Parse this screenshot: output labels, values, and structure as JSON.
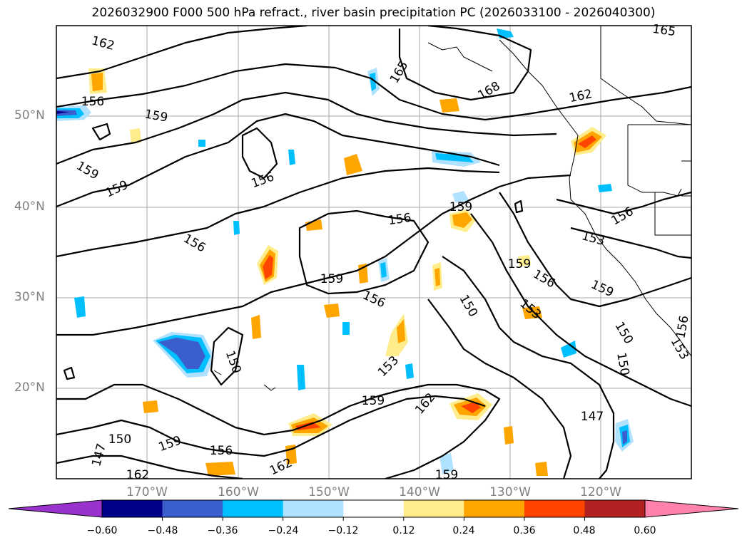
{
  "title": "2026032900 F000 500 hPa refract., river basin precipitation PC (2026033100 - 2026040300)",
  "lat_labels": [
    "50°N",
    "40°N",
    "30°N",
    "20°N"
  ],
  "lon_labels": [
    "170°W",
    "160°W",
    "150°W",
    "140°W",
    "130°W",
    "120°W"
  ],
  "colorbar": {
    "colors": [
      "#9a32cd",
      "#00008b",
      "#3a5fcd",
      "#00bfff",
      "#b0e2ff",
      "#ffffff",
      "#ffec8b",
      "#ffa500",
      "#ff4500",
      "#b22222",
      "#ff82ab"
    ],
    "ticks": [
      "−0.60",
      "−0.48",
      "−0.36",
      "−0.24",
      "−0.12",
      "0.12",
      "0.24",
      "0.36",
      "0.48",
      "0.60"
    ]
  },
  "contour_labels": [
    "162",
    "156",
    "159",
    "159",
    "159",
    "156",
    "156",
    "165",
    "168",
    "162",
    "165",
    "156",
    "159",
    "156",
    "159",
    "153",
    "156",
    "159",
    "150",
    "153",
    "159",
    "156",
    "153",
    "159",
    "153",
    "162",
    "150",
    "147",
    "150",
    "156",
    "150",
    "159",
    "147",
    "162",
    "162",
    "159",
    "156",
    "150"
  ]
}
